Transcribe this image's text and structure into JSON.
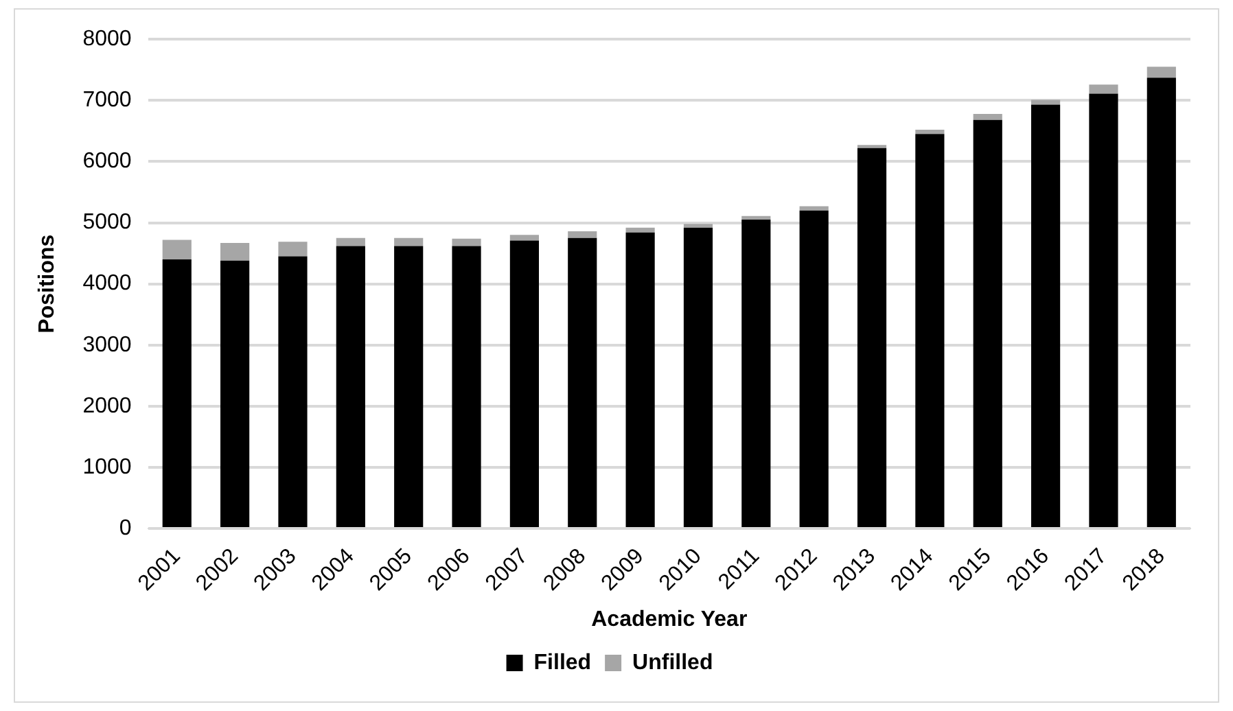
{
  "chart_data": {
    "type": "bar",
    "stacked": true,
    "xlabel": "Academic Year",
    "ylabel": "Positions",
    "categories": [
      "2001",
      "2002",
      "2003",
      "2004",
      "2005",
      "2006",
      "2007",
      "2008",
      "2009",
      "2010",
      "2011",
      "2012",
      "2013",
      "2014",
      "2015",
      "2016",
      "2017",
      "2018"
    ],
    "series": [
      {
        "name": "Filled",
        "color": "#000000",
        "values": [
          4400,
          4380,
          4450,
          4620,
          4620,
          4620,
          4710,
          4750,
          4840,
          4920,
          5050,
          5200,
          6220,
          6450,
          6680,
          6930,
          7110,
          7370
        ]
      },
      {
        "name": "Unfilled",
        "color": "#a6a6a6",
        "values": [
          320,
          290,
          240,
          130,
          130,
          120,
          90,
          110,
          80,
          60,
          60,
          70,
          50,
          70,
          100,
          80,
          150,
          180
        ]
      }
    ],
    "ylim": [
      0,
      8000
    ],
    "yticks": [
      0,
      1000,
      2000,
      3000,
      4000,
      5000,
      6000,
      7000,
      8000
    ],
    "grid": "y",
    "legend": "bottom"
  }
}
